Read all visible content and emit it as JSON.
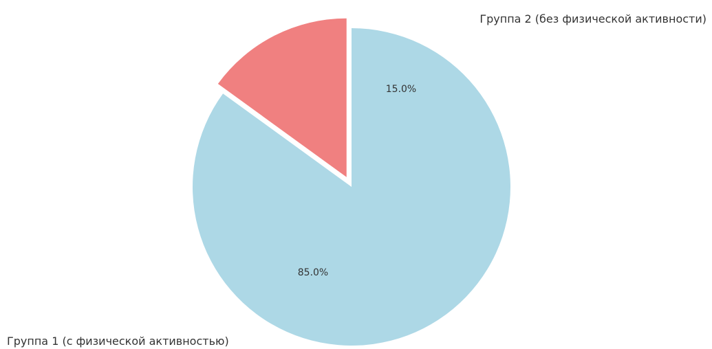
{
  "chart_data": {
    "type": "pie",
    "title": "",
    "slices": [
      {
        "label": "Группа 1 (с физической активностью)",
        "value": 85.0,
        "percent_label": "85.0%",
        "color": "#add8e6",
        "exploded": false
      },
      {
        "label": "Группа 2 (без физической активности)",
        "value": 15.0,
        "percent_label": "15.0%",
        "color": "#f08080",
        "exploded": true
      }
    ],
    "start_angle_deg": 90,
    "direction": "clockwise"
  }
}
